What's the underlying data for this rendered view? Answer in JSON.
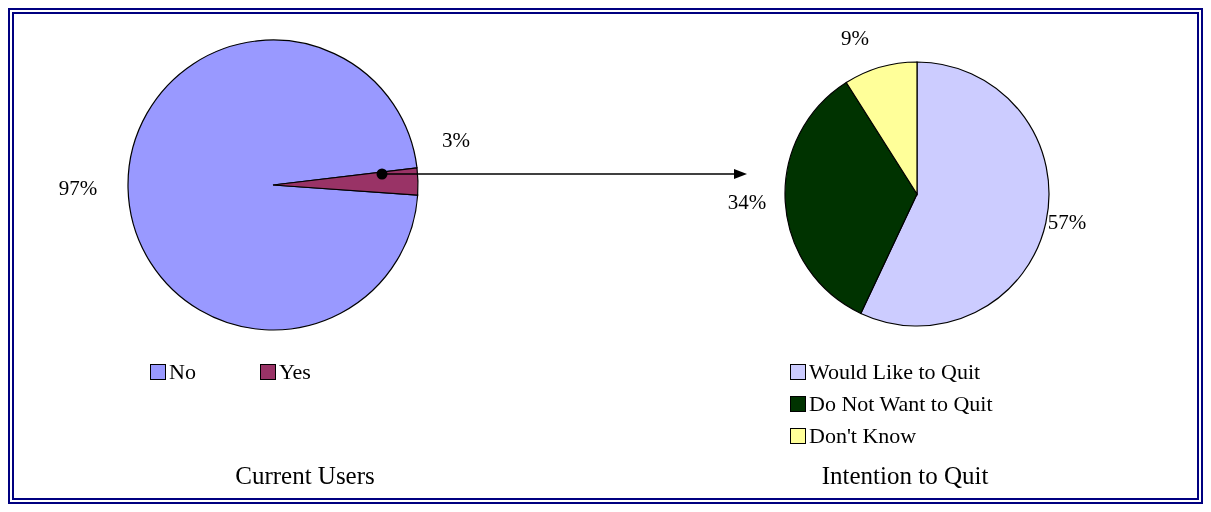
{
  "chart_data": [
    {
      "type": "pie",
      "title": "Current Users",
      "categories": [
        "No",
        "Yes"
      ],
      "values": [
        97,
        3
      ],
      "colors": [
        "#9999ff",
        "#993366"
      ],
      "value_labels": [
        "97%",
        "3%"
      ],
      "legend": "bottom"
    },
    {
      "type": "pie",
      "title": "Intention to Quit",
      "categories": [
        "Would Like to Quit",
        "Do Not Want to Quit",
        "Don't Know"
      ],
      "values": [
        57,
        34,
        9
      ],
      "colors": [
        "#ccccff",
        "#003300",
        "#ffff99"
      ],
      "value_labels": [
        "57%",
        "34%",
        "9%"
      ],
      "legend": "bottom"
    }
  ]
}
